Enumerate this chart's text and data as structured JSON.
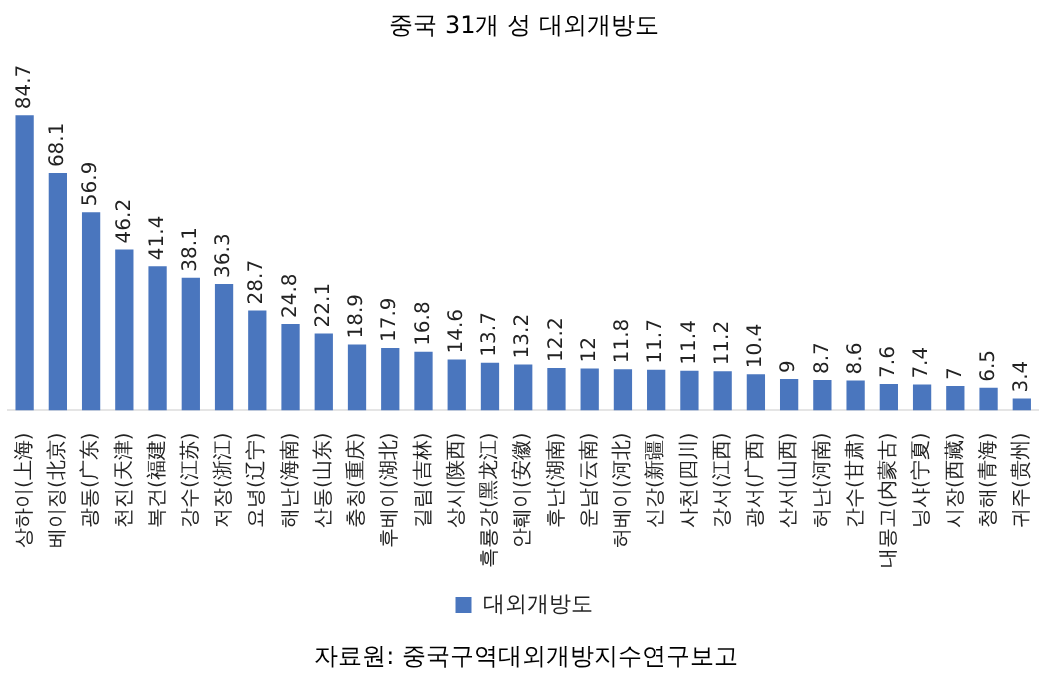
{
  "chart_data": {
    "type": "bar",
    "title": "중국 31개 성 대외개방도",
    "categories": [
      "상하이(上海)",
      "베이징(北京)",
      "광동(广东)",
      "천진(天津)",
      "복건(福建)",
      "강수(江苏)",
      "저장(浙江)",
      "요녕(辽宁)",
      "해난(海南)",
      "산동(山东)",
      "충칭(重庆)",
      "후베이(湖北)",
      "길림(吉林)",
      "상시(陕西)",
      "흑룡강(黑龙江)",
      "안훼이(安徽)",
      "후난(湖南)",
      "운남(云南)",
      "허베이(河北)",
      "신강(新疆)",
      "사천(四川)",
      "강서(江西)",
      "광서(广西)",
      "산서(山西)",
      "허난(河南)",
      "간수(甘肃)",
      "내몽고(内蒙古)",
      "닝샤(宁夏)",
      "시장(西藏)",
      "청해(青海)",
      "귀주(贵州)"
    ],
    "series": [
      {
        "name": "대외개방도",
        "color": "#4a76be",
        "values": [
          84.7,
          68.1,
          56.9,
          46.2,
          41.4,
          38.1,
          36.3,
          28.7,
          24.8,
          22.1,
          18.9,
          17.9,
          16.8,
          14.6,
          13.7,
          13.2,
          12.2,
          12,
          11.8,
          11.7,
          11.4,
          11.2,
          10.4,
          9,
          8.7,
          8.6,
          7.6,
          7.4,
          7,
          6.5,
          3.4
        ]
      }
    ],
    "data_labels": true,
    "legend": "bottom",
    "grid": false,
    "tick_labels": "x",
    "annotations": [
      "자료원:  중국구역대외개방지수연구보고"
    ]
  }
}
